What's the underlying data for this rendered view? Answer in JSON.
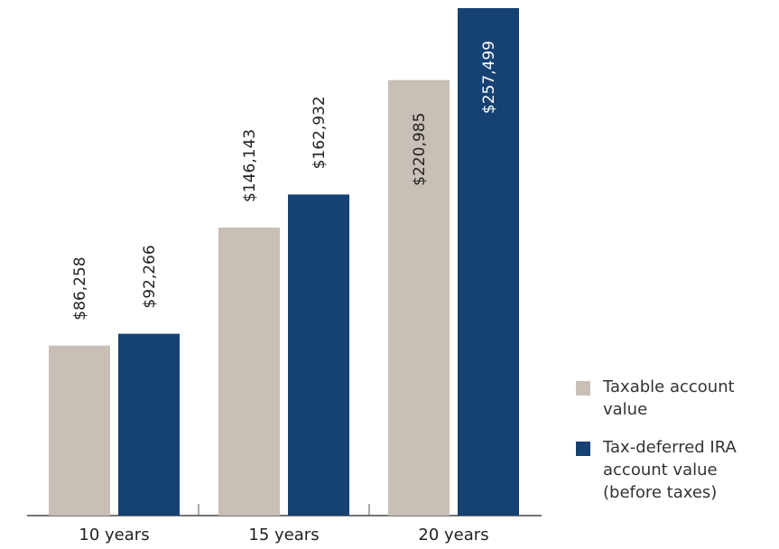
{
  "chart_data": {
    "type": "bar",
    "categories": [
      "10 years",
      "15 years",
      "20 years"
    ],
    "series": [
      {
        "name": "Taxable account value",
        "color": "#c8bfb6",
        "values": [
          86258,
          146143,
          220985
        ],
        "labels": [
          "$86,258",
          "$146,143",
          "$220,985"
        ]
      },
      {
        "name": "Tax-deferred IRA account value (before taxes)",
        "color": "#164273",
        "values": [
          92266,
          162932,
          257499
        ],
        "labels": [
          "$92,266",
          "$162,932",
          "$257,499"
        ]
      }
    ],
    "ylim": [
      0,
      257499
    ],
    "grid": false,
    "legend_position": "bottom-right",
    "title": "",
    "xlabel": "",
    "ylabel": ""
  },
  "legend": {
    "items": [
      {
        "label": "Taxable account value",
        "color": "#c8bfb6"
      },
      {
        "label": "Tax-deferred IRA account value (before taxes)",
        "color": "#164273"
      }
    ]
  }
}
